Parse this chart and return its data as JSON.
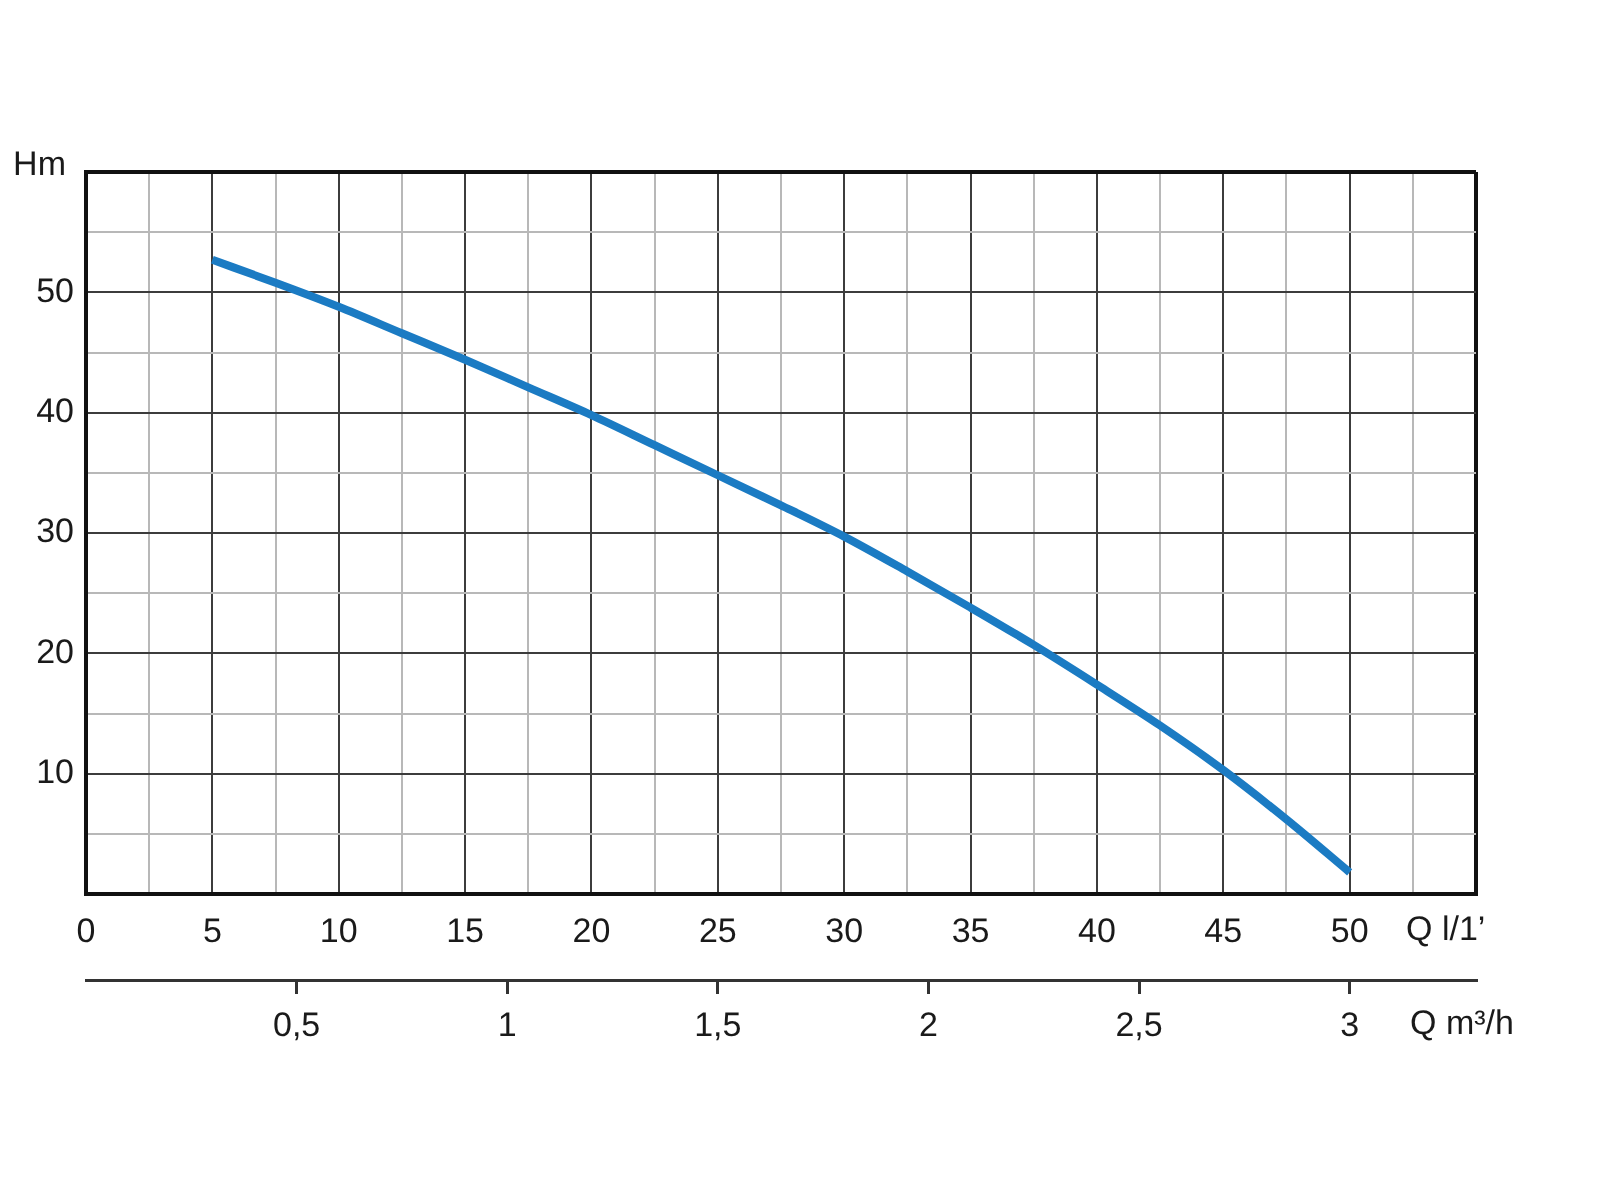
{
  "chart_data": {
    "type": "line",
    "ylabel": "Hm",
    "xlabel": "Q l/1’",
    "x2label": "Q m³/h",
    "x": [
      5,
      7.5,
      10,
      12.5,
      15,
      17.5,
      20,
      22.5,
      25,
      27.5,
      30,
      32.5,
      35,
      37.5,
      40,
      42.5,
      45,
      47.5,
      50
    ],
    "series": [
      {
        "color": "#1b7bc3",
        "values": [
          52.7,
          50.8,
          48.8,
          46.6,
          44.4,
          42.1,
          39.8,
          37.3,
          34.8,
          32.3,
          29.7,
          26.8,
          23.8,
          20.7,
          17.4,
          14.0,
          10.3,
          6.2,
          1.8
        ]
      }
    ],
    "xlim": [
      0,
      55
    ],
    "xticks": [
      0,
      {
        "value": 2.5,
        "label": null
      },
      5,
      {
        "value": 7.5,
        "label": null
      },
      10,
      {
        "value": 12.5,
        "label": null
      },
      15,
      {
        "value": 17.5,
        "label": null
      },
      20,
      {
        "value": 22.5,
        "label": null
      },
      25,
      {
        "value": 27.5,
        "label": null
      },
      30,
      {
        "value": 32.5,
        "label": null
      },
      35,
      {
        "value": 37.5,
        "label": null
      },
      40,
      {
        "value": 42.5,
        "label": null
      },
      45,
      {
        "value": 47.5,
        "label": null
      },
      50,
      {
        "value": 52.5,
        "label": null
      },
      {
        "value": 55,
        "label": null
      }
    ],
    "ylim": [
      0,
      60
    ],
    "yticks": [
      {
        "value": 0,
        "label": null
      },
      {
        "value": 5,
        "label": null
      },
      10,
      {
        "value": 15,
        "label": null
      },
      20,
      {
        "value": 25,
        "label": null
      },
      30,
      {
        "value": 35,
        "label": null
      },
      40,
      {
        "value": 45,
        "label": null
      },
      50,
      {
        "value": 55,
        "label": null
      },
      {
        "value": 60,
        "label": null
      }
    ],
    "x2lim": [
      0,
      3.3
    ],
    "x2ticks": [
      {
        "value": 0.5,
        "label": "0,5"
      },
      1,
      {
        "value": 1.5,
        "label": "1,5"
      },
      2,
      {
        "value": 2.5,
        "label": "2,5"
      },
      3
    ],
    "grid": true
  }
}
